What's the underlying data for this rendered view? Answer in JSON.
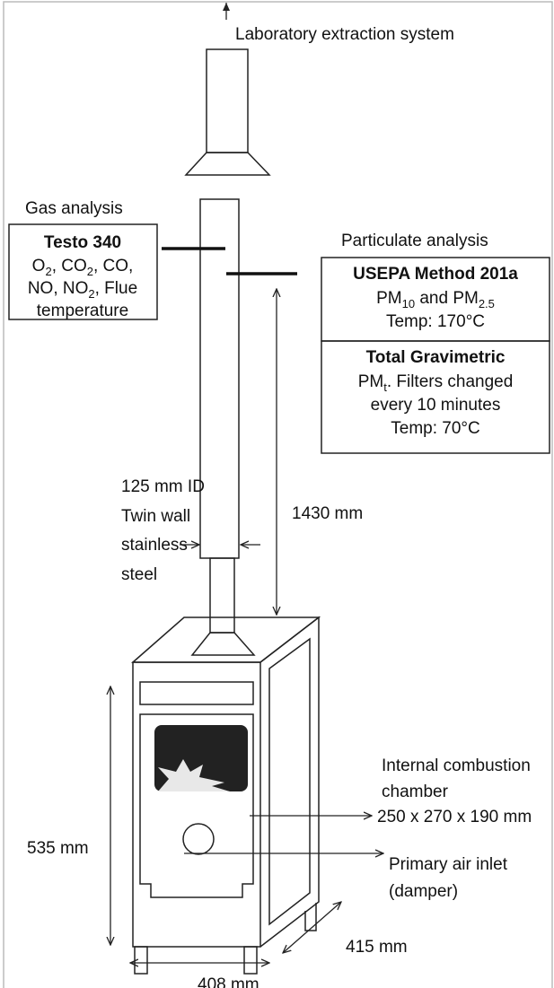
{
  "extraction": "Laboratory extraction system",
  "gas_analysis": {
    "heading": "Gas analysis",
    "title": "Testo 340",
    "lines": [
      [
        "O",
        {
          "sub": "2"
        },
        ", CO",
        {
          "sub": "2"
        },
        ", CO,"
      ],
      [
        "NO, NO",
        {
          "sub": "2"
        },
        ", Flue"
      ],
      [
        "temperature"
      ]
    ]
  },
  "particulate_analysis": {
    "heading": "Particulate analysis",
    "boxes": [
      {
        "title": "USEPA Method 201a",
        "lines": [
          [
            "PM",
            {
              "sub": "10"
            },
            " and PM",
            {
              "sub": "2.5"
            }
          ],
          [
            "Temp: 170°C"
          ]
        ]
      },
      {
        "title": "Total Gravimetric",
        "lines": [
          [
            "PM",
            {
              "sub": "t"
            },
            ". Filters changed"
          ],
          [
            "every 10 minutes"
          ],
          [
            "Temp: 70°C"
          ]
        ]
      }
    ]
  },
  "flue": {
    "height": "1430 mm",
    "description": [
      "125 mm ID",
      "Twin wall",
      "stainless",
      "steel"
    ]
  },
  "stove": {
    "height": "535 mm",
    "width": "408 mm",
    "depth": "415 mm",
    "chamber": {
      "label": [
        "Internal combustion",
        "chamber"
      ],
      "size": "250 x 270 x 190 mm"
    },
    "air_inlet": [
      "Primary air inlet",
      "(damper)"
    ]
  }
}
